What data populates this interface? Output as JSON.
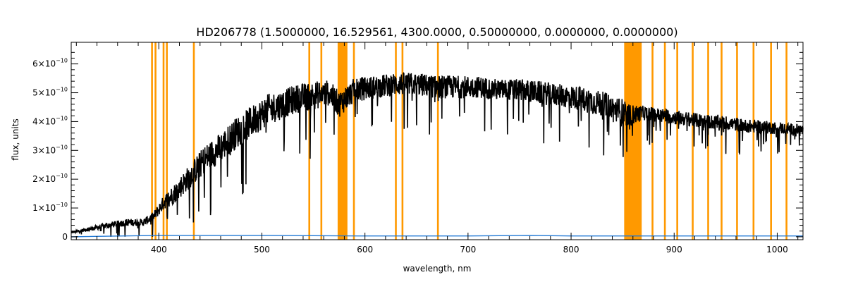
{
  "chart_data": {
    "type": "line",
    "title": "HD206778     (1.5000000, 16.529561, 4300.0000, 0.50000000, 0.0000000, 0.0000000)",
    "xlabel": "wavelength, nm",
    "ylabel": "flux, units",
    "xlim": [
      315,
      1025
    ],
    "ylim": [
      -0.1,
      6.75
    ],
    "y_scale_exponent": -10,
    "x_ticks": [
      400,
      500,
      600,
      700,
      800,
      900,
      1000
    ],
    "x_tick_labels": [
      "400",
      "500",
      "600",
      "700",
      "800",
      "900",
      "1000"
    ],
    "y_ticks": [
      0,
      1,
      2,
      3,
      4,
      5,
      6
    ],
    "y_tick_labels": [
      "0",
      "1×10",
      "2×10",
      "3×10",
      "4×10",
      "5×10",
      "6×10"
    ],
    "y_tick_exponent_label": "−10",
    "grid": false,
    "series": [
      {
        "color": "#000000",
        "x": [
          315,
          330,
          350,
          370,
          385,
          395,
          405,
          415,
          425,
          435,
          445,
          460,
          475,
          490,
          505,
          520,
          535,
          550,
          565,
          575,
          590,
          610,
          630,
          650,
          670,
          690,
          710,
          730,
          750,
          770,
          790,
          810,
          830,
          850,
          855,
          870,
          890,
          910,
          930,
          950,
          970,
          990,
          1010,
          1025
        ],
        "y": [
          0.15,
          0.25,
          0.4,
          0.5,
          0.5,
          0.7,
          1.2,
          1.5,
          1.9,
          2.3,
          2.7,
          3.1,
          3.6,
          4.0,
          4.4,
          4.6,
          4.8,
          4.9,
          5.0,
          4.6,
          5.1,
          5.2,
          5.3,
          5.3,
          5.2,
          5.2,
          5.2,
          5.1,
          5.1,
          5.0,
          4.9,
          4.8,
          4.6,
          4.3,
          4.2,
          4.3,
          4.2,
          4.1,
          4.0,
          3.95,
          3.85,
          3.8,
          3.75,
          3.7
        ],
        "noise": [
          0.08,
          0.12,
          0.2,
          0.25,
          0.25,
          0.35,
          0.5,
          0.7,
          0.8,
          0.9,
          1.0,
          1.05,
          1.1,
          1.1,
          1.1,
          1.0,
          1.0,
          1.0,
          0.9,
          0.9,
          0.85,
          0.8,
          0.8,
          0.8,
          0.8,
          0.8,
          0.75,
          0.75,
          0.75,
          0.8,
          0.8,
          0.85,
          0.9,
          1.0,
          0.8,
          0.5,
          0.5,
          0.5,
          0.5,
          0.5,
          0.45,
          0.45,
          0.4,
          0.4
        ]
      },
      {
        "color": "#1f77d4",
        "x": [
          315,
          400,
          500,
          600,
          700,
          760,
          800,
          900,
          1000,
          1025
        ],
        "y": [
          0.0,
          0.05,
          0.05,
          0.03,
          0.03,
          0.05,
          0.03,
          0.03,
          0.03,
          0.03
        ]
      }
    ],
    "masked_regions_color": "#ff9900",
    "masked_lines": [
      393.4,
      396.8,
      404.6,
      407.8,
      434.0,
      546.0,
      557.7,
      589.3,
      630.0,
      636.4,
      670.8,
      879.0,
      891.0,
      903.0,
      918.0,
      933.0,
      946.0,
      961.0,
      977.0,
      994.0,
      1009.0
    ],
    "masked_bands": [
      [
        573.5,
        583.0
      ],
      [
        851.5,
        868.5
      ]
    ]
  }
}
